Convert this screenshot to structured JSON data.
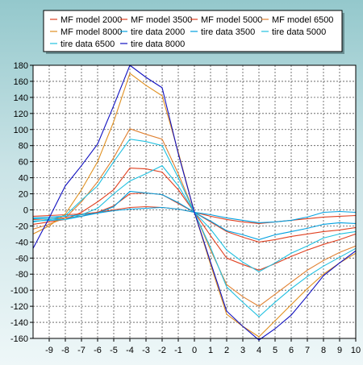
{
  "chart_data": {
    "type": "line",
    "title": "",
    "xlabel": "",
    "ylabel": "",
    "x": [
      -10,
      -9,
      -8,
      -7,
      -6,
      -5,
      -4,
      -3,
      -2,
      -1,
      0,
      1,
      2,
      3,
      4,
      5,
      6,
      7,
      8,
      9,
      10
    ],
    "xlim": [
      -10,
      10
    ],
    "ylim": [
      -160,
      180
    ],
    "xticks": [
      "-9",
      "-8",
      "-7",
      "-6",
      "-5",
      "-4",
      "-3",
      "-2",
      "-1",
      "0",
      "1",
      "2",
      "3",
      "4",
      "5",
      "6",
      "7",
      "8",
      "9",
      "10"
    ],
    "yticks": [
      "180",
      "160",
      "140",
      "120",
      "100",
      "80",
      "60",
      "40",
      "20",
      "0",
      "-20",
      "-40",
      "-60",
      "-80",
      "-100",
      "-120",
      "-140",
      "-160"
    ],
    "grid": true,
    "legend_position": "top",
    "series": [
      {
        "name": "MF model 2000",
        "color": "#e04020",
        "values": [
          -8,
          -7,
          -6,
          -5,
          -3,
          0,
          3,
          4,
          3,
          1,
          -3,
          -8,
          -12,
          -15,
          -17,
          -15,
          -13,
          -11,
          -9,
          -8,
          -7
        ]
      },
      {
        "name": "MF model 3500",
        "color": "#e04020",
        "values": [
          -12,
          -11,
          -10,
          -8,
          -3,
          5,
          20,
          21,
          19,
          8,
          -3,
          -15,
          -27,
          -34,
          -40,
          -37,
          -33,
          -30,
          -27,
          -25,
          -22
        ]
      },
      {
        "name": "MF model 5000",
        "color": "#e04020",
        "values": [
          -18,
          -15,
          -12,
          -3,
          10,
          25,
          52,
          51,
          47,
          25,
          -3,
          -32,
          -60,
          -68,
          -75,
          -67,
          -58,
          -50,
          -43,
          -37,
          -30
        ]
      },
      {
        "name": "MF model 6500",
        "color": "#e08030",
        "values": [
          -24,
          -18,
          -10,
          10,
          35,
          65,
          101,
          94,
          88,
          45,
          -3,
          -50,
          -93,
          -108,
          -120,
          -105,
          -90,
          -75,
          -63,
          -53,
          -45
        ]
      },
      {
        "name": "MF model 8000",
        "color": "#e09020",
        "values": [
          -30,
          -20,
          -5,
          25,
          60,
          110,
          170,
          155,
          142,
          72,
          -3,
          -68,
          -130,
          -145,
          -158,
          -138,
          -118,
          -98,
          -80,
          -66,
          -54
        ]
      },
      {
        "name": "tire data 2000",
        "color": "#00a0e0",
        "values": [
          -10,
          -9,
          -8,
          -6,
          -4,
          -1,
          1,
          2,
          3,
          1,
          -3,
          -6,
          -10,
          -13,
          -16,
          -15,
          -13,
          -9,
          -3,
          -2,
          -3
        ]
      },
      {
        "name": "tire data 3500",
        "color": "#00a0e0",
        "values": [
          -14,
          -13,
          -12,
          -8,
          -4,
          4,
          23,
          21,
          19,
          9,
          -3,
          -14,
          -26,
          -31,
          -37,
          -31,
          -27,
          -23,
          -18,
          -16,
          -17
        ]
      },
      {
        "name": "tire data 5000",
        "color": "#20c0e0",
        "values": [
          -11,
          -11,
          -12,
          -6,
          2,
          20,
          36,
          45,
          55,
          30,
          -3,
          -24,
          -50,
          -65,
          -77,
          -66,
          -54,
          -45,
          -35,
          -30,
          -27
        ]
      },
      {
        "name": "tire data 6500",
        "color": "#20c0e0",
        "values": [
          -15,
          -12,
          -7,
          12,
          30,
          60,
          88,
          85,
          80,
          40,
          -3,
          -47,
          -96,
          -115,
          -133,
          -115,
          -98,
          -83,
          -70,
          -59,
          -48
        ]
      },
      {
        "name": "tire data 8000",
        "color": "#1010c0",
        "values": [
          -48,
          -10,
          30,
          55,
          82,
          130,
          180,
          165,
          152,
          70,
          -3,
          -65,
          -126,
          -145,
          -162,
          -148,
          -131,
          -107,
          -82,
          -66,
          -51
        ]
      }
    ]
  }
}
